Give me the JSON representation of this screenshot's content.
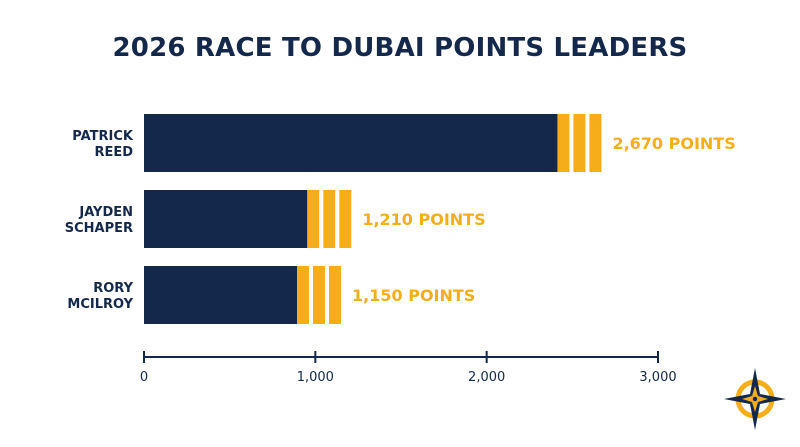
{
  "title": "2026 RACE TO DUBAI POINTS LEADERS",
  "colors": {
    "navy": "#14284b",
    "gold": "#f5ae1a",
    "white": "#ffffff"
  },
  "chart_data": {
    "type": "bar",
    "orientation": "horizontal",
    "title": "2026 RACE TO DUBAI POINTS LEADERS",
    "categories": [
      [
        "PATRICK",
        "REED"
      ],
      [
        "JAYDEN",
        "SCHAPER"
      ],
      [
        "RORY",
        "MCILROY"
      ]
    ],
    "values": [
      2670,
      1210,
      1150
    ],
    "value_labels": [
      "2,670 POINTS",
      "1,210 POINTS",
      "1,150 POINTS"
    ],
    "xlim": [
      0,
      3000
    ],
    "xticks": [
      0,
      1000,
      2000,
      3000
    ],
    "xtick_labels": [
      "0",
      "1,000",
      "2,000",
      "3,000"
    ],
    "grid": false,
    "legend": "none"
  },
  "logo": {
    "icon": "compass-star-icon"
  }
}
